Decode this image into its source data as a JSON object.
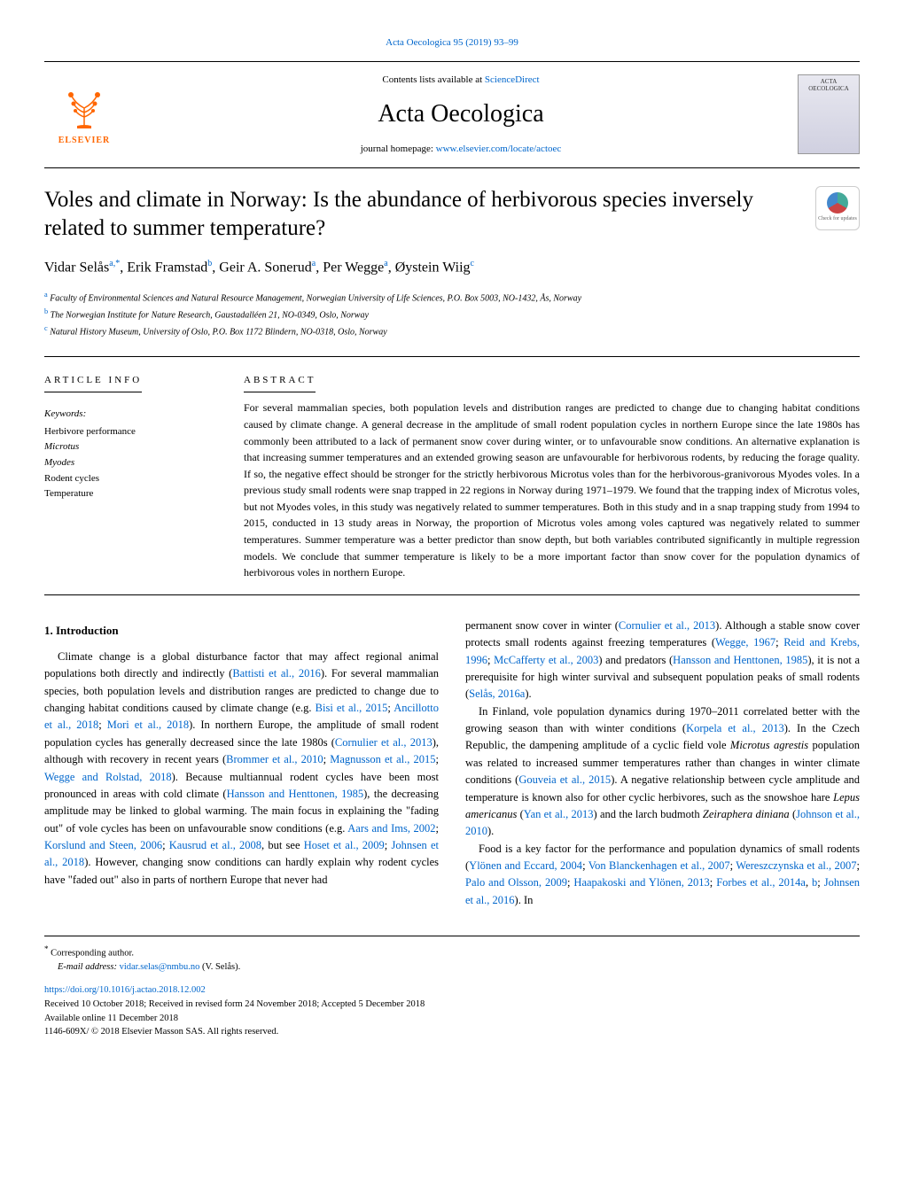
{
  "journal": {
    "citation": "Acta Oecologica 95 (2019) 93–99",
    "name": "Acta Oecologica",
    "contents_prefix": "Contents lists available at ",
    "contents_link": "ScienceDirect",
    "homepage_prefix": "journal homepage: ",
    "homepage_url": "www.elsevier.com/locate/actoec",
    "publisher_name": "ELSEVIER",
    "cover_label": "ACTA OECOLOGICA"
  },
  "article": {
    "title": "Voles and climate in Norway: Is the abundance of herbivorous species inversely related to summer temperature?",
    "check_updates": "Check for updates",
    "authors_html": "Vidar Selås<sup>a,*</sup>, Erik Framstad<sup>b</sup>, Geir A. Sonerud<sup>a</sup>, Per Wegge<sup>a</sup>, Øystein Wiig<sup>c</sup>",
    "affiliations": [
      {
        "sup": "a",
        "text": "Faculty of Environmental Sciences and Natural Resource Management, Norwegian University of Life Sciences, P.O. Box 5003, NO-1432, Ås, Norway"
      },
      {
        "sup": "b",
        "text": "The Norwegian Institute for Nature Research, Gaustadalléen 21, NO-0349, Oslo, Norway"
      },
      {
        "sup": "c",
        "text": "Natural History Museum, University of Oslo, P.O. Box 1172 Blindern, NO-0318, Oslo, Norway"
      }
    ]
  },
  "info": {
    "label": "ARTICLE INFO",
    "keywords_label": "Keywords:",
    "keywords": [
      "Herbivore performance",
      "Microtus",
      "Myodes",
      "Rodent cycles",
      "Temperature"
    ]
  },
  "abstract": {
    "label": "ABSTRACT",
    "text": "For several mammalian species, both population levels and distribution ranges are predicted to change due to changing habitat conditions caused by climate change. A general decrease in the amplitude of small rodent population cycles in northern Europe since the late 1980s has commonly been attributed to a lack of permanent snow cover during winter, or to unfavourable snow conditions. An alternative explanation is that increasing summer temperatures and an extended growing season are unfavourable for herbivorous rodents, by reducing the forage quality. If so, the negative effect should be stronger for the strictly herbivorous Microtus voles than for the herbivorous-granivorous Myodes voles. In a previous study small rodents were snap trapped in 22 regions in Norway during 1971–1979. We found that the trapping index of Microtus voles, but not Myodes voles, in this study was negatively related to summer temperatures. Both in this study and in a snap trapping study from 1994 to 2015, conducted in 13 study areas in Norway, the proportion of Microtus voles among voles captured was negatively related to summer temperatures. Summer temperature was a better predictor than snow depth, but both variables contributed significantly in multiple regression models. We conclude that summer temperature is likely to be a more important factor than snow cover for the population dynamics of herbivorous voles in northern Europe."
  },
  "body": {
    "heading": "1. Introduction",
    "p1_html": "Climate change is a global disturbance factor that may affect regional animal populations both directly and indirectly (<span class='cite'>Battisti et al., 2016</span>). For several mammalian species, both population levels and distribution ranges are predicted to change due to changing habitat conditions caused by climate change (e.g. <span class='cite'>Bisi et al., 2015</span>; <span class='cite'>Ancillotto et al., 2018</span>; <span class='cite'>Mori et al., 2018</span>). In northern Europe, the amplitude of small rodent population cycles has generally decreased since the late 1980s (<span class='cite'>Cornulier et al., 2013</span>), although with recovery in recent years (<span class='cite'>Brommer et al., 2010</span>; <span class='cite'>Magnusson et al., 2015</span>; <span class='cite'>Wegge and Rolstad, 2018</span>). Because multiannual rodent cycles have been most pronounced in areas with cold climate (<span class='cite'>Hansson and Henttonen, 1985</span>), the decreasing amplitude may be linked to global warming. The main focus in explaining the \"fading out\" of vole cycles has been on unfavourable snow conditions (e.g. <span class='cite'>Aars and Ims, 2002</span>; <span class='cite'>Korslund and Steen, 2006</span>; <span class='cite'>Kausrud et al., 2008</span>, but see <span class='cite'>Hoset et al., 2009</span>; <span class='cite'>Johnsen et al., 2018</span>). However, changing snow conditions can hardly explain why rodent cycles have \"faded out\" also in parts of northern Europe that never had",
    "p2_html": "permanent snow cover in winter (<span class='cite'>Cornulier et al., 2013</span>). Although a stable snow cover protects small rodents against freezing temperatures (<span class='cite'>Wegge, 1967</span>; <span class='cite'>Reid and Krebs, 1996</span>; <span class='cite'>McCafferty et al., 2003</span>) and predators (<span class='cite'>Hansson and Henttonen, 1985</span>), it is not a prerequisite for high winter survival and subsequent population peaks of small rodents (<span class='cite'>Selås, 2016a</span>).",
    "p3_html": "In Finland, vole population dynamics during 1970–2011 correlated better with the growing season than with winter conditions (<span class='cite'>Korpela et al., 2013</span>). In the Czech Republic, the dampening amplitude of a cyclic field vole <span class='species'>Microtus agrestis</span> population was related to increased summer temperatures rather than changes in winter climate conditions (<span class='cite'>Gouveia et al., 2015</span>). A negative relationship between cycle amplitude and temperature is known also for other cyclic herbivores, such as the snowshoe hare <span class='species'>Lepus americanus</span> (<span class='cite'>Yan et al., 2013</span>) and the larch budmoth <span class='species'>Zeiraphera diniana</span> (<span class='cite'>Johnson et al., 2010</span>).",
    "p4_html": "Food is a key factor for the performance and population dynamics of small rodents (<span class='cite'>Ylönen and Eccard, 2004</span>; <span class='cite'>Von Blanckenhagen et al., 2007</span>; <span class='cite'>Wereszczynska et al., 2007</span>; <span class='cite'>Palo and Olsson, 2009</span>; <span class='cite'>Haapakoski and Ylönen, 2013</span>; <span class='cite'>Forbes et al., 2014a</span>, <span class='cite'>b</span>; <span class='cite'>Johnsen et al., 2016</span>). In"
  },
  "footer": {
    "corr": "Corresponding author.",
    "email_label": "E-mail address: ",
    "email": "vidar.selas@nmbu.no",
    "email_suffix": " (V. Selås).",
    "doi": "https://doi.org/10.1016/j.actao.2018.12.002",
    "received": "Received 10 October 2018; Received in revised form 24 November 2018; Accepted 5 December 2018",
    "available": "Available online 11 December 2018",
    "copyright": "1146-609X/ © 2018 Elsevier Masson SAS. All rights reserved."
  }
}
